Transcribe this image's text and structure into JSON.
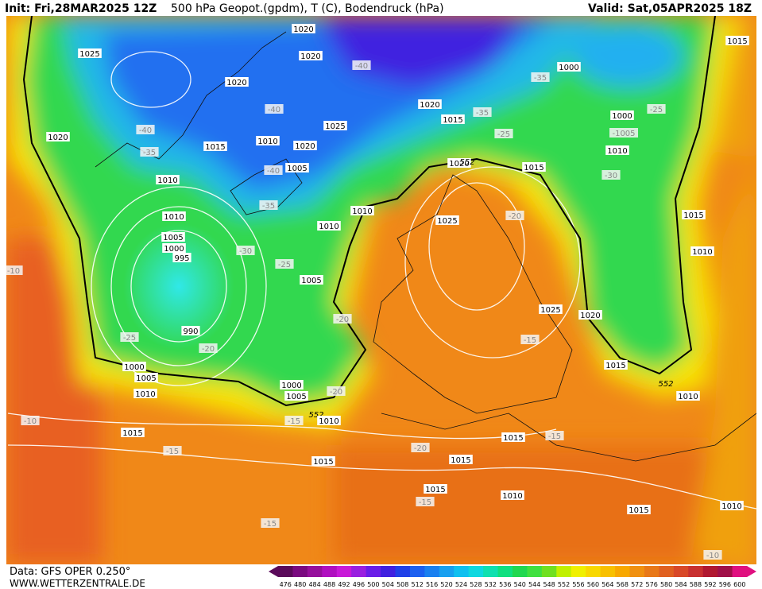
{
  "header": {
    "init": "Init: Fri,28MAR2025 12Z",
    "title": "500 hPa Geopot.(gpdm), T (C), Bodendruck (hPa)",
    "valid": "Valid: Sat,05APR2025 18Z"
  },
  "footer": {
    "data": "Data: GFS OPER 0.250°",
    "site": "WWW.WETTERZENTRALE.DE"
  },
  "colorbar": {
    "values": [
      476,
      480,
      484,
      488,
      492,
      496,
      500,
      504,
      508,
      512,
      516,
      520,
      524,
      528,
      532,
      536,
      540,
      544,
      548,
      552,
      556,
      560,
      564,
      568,
      572,
      576,
      580,
      584,
      588,
      592,
      596,
      600
    ],
    "colors": [
      "#5a0a5a",
      "#7a0a80",
      "#96109c",
      "#b010c0",
      "#c81ad8",
      "#9a20e0",
      "#6a1ee8",
      "#4020e0",
      "#2040e8",
      "#1c60f0",
      "#1a80f0",
      "#18a0f0",
      "#10c0f0",
      "#10d8e0",
      "#10e0b0",
      "#10e080",
      "#20d850",
      "#40e040",
      "#70e020",
      "#c0f000",
      "#f0f000",
      "#f8d800",
      "#f8c000",
      "#f8a800",
      "#f09010",
      "#e87818",
      "#e06020",
      "#d84828",
      "#c83030",
      "#b01830",
      "#a01048",
      "#e01080"
    ]
  },
  "labels": [
    "1020",
    "1025",
    "1020",
    "-40",
    "-35",
    "1000",
    "1015",
    "1020",
    "1020",
    "-35",
    "1015",
    "-40",
    "1000",
    "-25",
    "-40",
    "1025",
    "-1005",
    "-25",
    "1020",
    "1015",
    "1010",
    "1020",
    "-35",
    "1010",
    "1020",
    "1005",
    "-40",
    "1015",
    "-30",
    "1010",
    "-35",
    "1010",
    "-20",
    "1015",
    "1010",
    "1025",
    "1010",
    "1005",
    "1000",
    "995",
    "-30",
    "1010",
    "-10",
    "-25",
    "1005",
    "1025",
    "1020",
    "-20",
    "990",
    "-25",
    "-15",
    "-20",
    "1015",
    "1005",
    "1000",
    "1010",
    "1000",
    "1005",
    "-20",
    "552",
    "1010",
    "-10",
    "-15",
    "552",
    "1010",
    "1015",
    "1015",
    "-15",
    "-20",
    "-15",
    "1015",
    "1015",
    "1015",
    "1010",
    "-15",
    "1015",
    "1010",
    "-15",
    "-10",
    "552"
  ]
}
